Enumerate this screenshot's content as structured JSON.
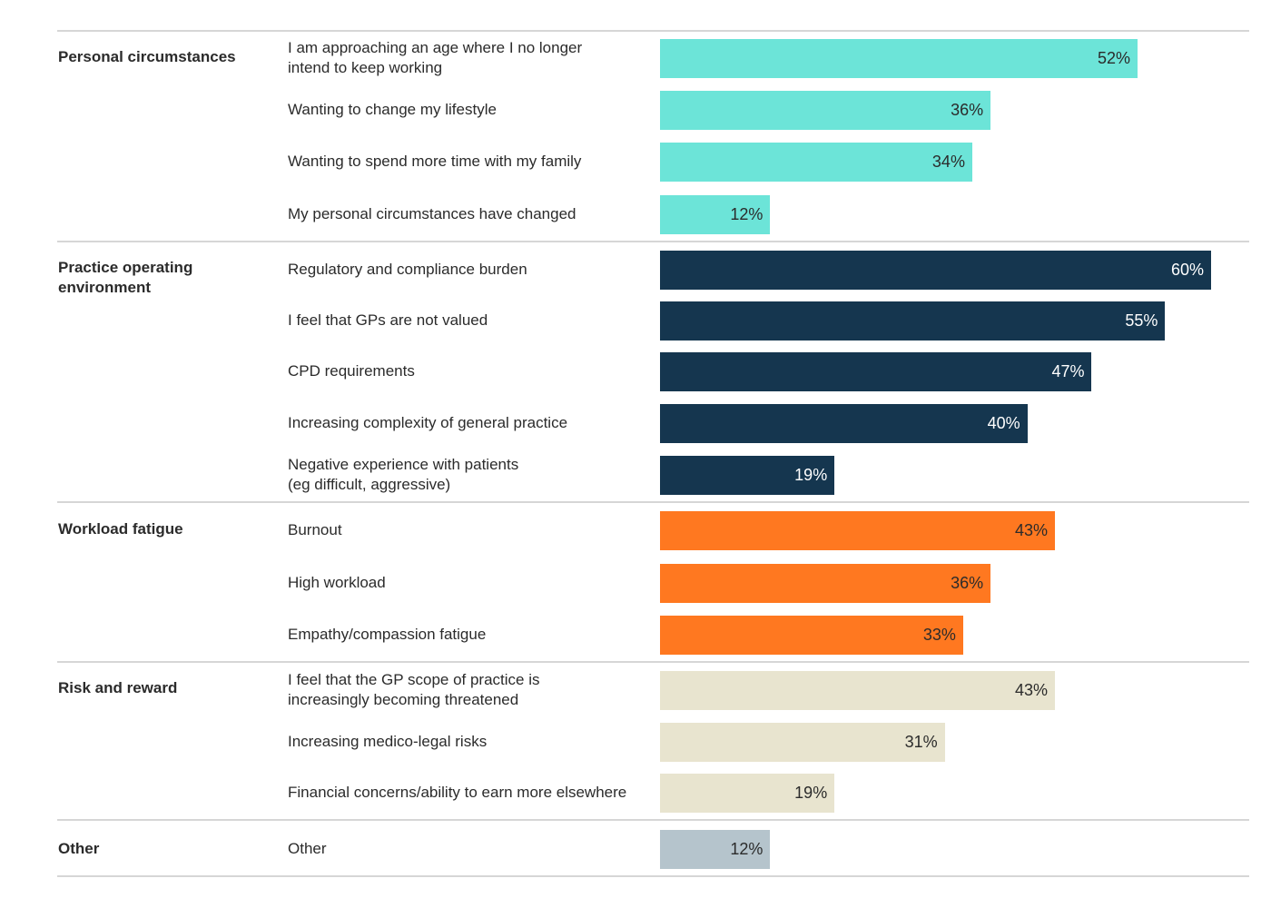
{
  "chart_data": {
    "type": "bar",
    "orientation": "horizontal",
    "title": "",
    "xlabel": "",
    "ylabel": "",
    "xlim": [
      0,
      60
    ],
    "grid": false,
    "legend": "none",
    "value_format": "percent",
    "groups": [
      {
        "name": "Personal circumstances",
        "color": "#6ce4d8",
        "label_color": "#2b2b2b",
        "items": [
          {
            "label": "I am approaching an age where I no longer\nintend to keep working",
            "value": 52,
            "value_label": "52%"
          },
          {
            "label": "Wanting to change my lifestyle",
            "value": 36,
            "value_label": "36%"
          },
          {
            "label": "Wanting to spend more time with my family",
            "value": 34,
            "value_label": "34%"
          },
          {
            "label": "My personal circumstances have changed",
            "value": 12,
            "value_label": "12%"
          }
        ]
      },
      {
        "name": "Practice operating\nenvironment",
        "color": "#15364f",
        "label_color": "#ffffff",
        "items": [
          {
            "label": "Regulatory and compliance burden",
            "value": 60,
            "value_label": "60%"
          },
          {
            "label": "I feel that GPs are not valued",
            "value": 55,
            "value_label": "55%"
          },
          {
            "label": "CPD requirements",
            "value": 47,
            "value_label": "47%"
          },
          {
            "label": "Increasing complexity of general practice",
            "value": 40,
            "value_label": "40%"
          },
          {
            "label": "Negative experience with patients\n(eg difficult, aggressive)",
            "value": 19,
            "value_label": "19%"
          }
        ]
      },
      {
        "name": "Workload fatigue",
        "color": "#ff7820",
        "label_color": "#2b2b2b",
        "items": [
          {
            "label": "Burnout",
            "value": 43,
            "value_label": "43%"
          },
          {
            "label": "High workload",
            "value": 36,
            "value_label": "36%"
          },
          {
            "label": "Empathy/compassion fatigue",
            "value": 33,
            "value_label": "33%"
          }
        ]
      },
      {
        "name": "Risk and reward",
        "color": "#e8e4cf",
        "label_color": "#2b2b2b",
        "items": [
          {
            "label": "I feel that the GP scope of practice is\nincreasingly becoming threatened",
            "value": 43,
            "value_label": "43%"
          },
          {
            "label": "Increasing medico-legal risks",
            "value": 31,
            "value_label": "31%"
          },
          {
            "label": "Financial concerns/ability to earn more elsewhere",
            "value": 19,
            "value_label": "19%"
          }
        ]
      },
      {
        "name": "Other",
        "color": "#b5c4cc",
        "label_color": "#2b2b2b",
        "items": [
          {
            "label": "Other",
            "value": 12,
            "value_label": "12%"
          }
        ]
      }
    ]
  }
}
